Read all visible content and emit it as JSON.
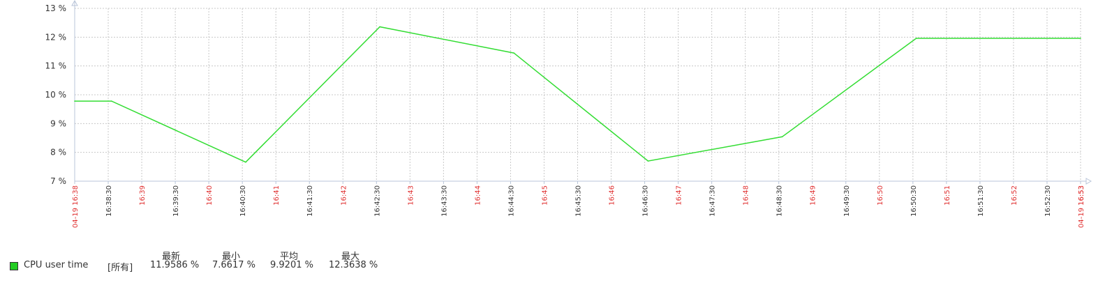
{
  "chart_data": {
    "type": "line",
    "title": "",
    "xlabel": "",
    "ylabel": "",
    "ylim": [
      7,
      13
    ],
    "yticks": [
      "13 %",
      "12 %",
      "11 %",
      "10 %",
      "9 %",
      "8 %",
      "7 %"
    ],
    "xticks": [
      {
        "label": "04-19 16:38",
        "red": true
      },
      {
        "label": "16:38:30",
        "red": false
      },
      {
        "label": "16:39",
        "red": true
      },
      {
        "label": "16:39:30",
        "red": false
      },
      {
        "label": "16:40",
        "red": true
      },
      {
        "label": "16:40:30",
        "red": false
      },
      {
        "label": "16:41",
        "red": true
      },
      {
        "label": "16:41:30",
        "red": false
      },
      {
        "label": "16:42",
        "red": true
      },
      {
        "label": "16:42:30",
        "red": false
      },
      {
        "label": "16:43",
        "red": true
      },
      {
        "label": "16:43:30",
        "red": false
      },
      {
        "label": "16:44",
        "red": true
      },
      {
        "label": "16:44:30",
        "red": false
      },
      {
        "label": "16:45",
        "red": true
      },
      {
        "label": "16:45:30",
        "red": false
      },
      {
        "label": "16:46",
        "red": true
      },
      {
        "label": "16:46:30",
        "red": false
      },
      {
        "label": "16:47",
        "red": true
      },
      {
        "label": "16:47:30",
        "red": false
      },
      {
        "label": "16:48",
        "red": true
      },
      {
        "label": "16:48:30",
        "red": false
      },
      {
        "label": "16:49",
        "red": true
      },
      {
        "label": "16:49:30",
        "red": false
      },
      {
        "label": "16:50",
        "red": true
      },
      {
        "label": "16:50:30",
        "red": false
      },
      {
        "label": "16:51",
        "red": true
      },
      {
        "label": "16:51:30",
        "red": false
      },
      {
        "label": "16:52",
        "red": true
      },
      {
        "label": "16:52:30",
        "red": false
      },
      {
        "label": "16:53",
        "red": true
      },
      {
        "label": "04-19 16:53",
        "red": true
      }
    ],
    "series": [
      {
        "name": "CPU user time",
        "color": "#33dd33",
        "points": [
          {
            "x": "16:38:00",
            "y": 9.78
          },
          {
            "x": "16:38:33",
            "y": 9.78
          },
          {
            "x": "16:40:33",
            "y": 7.66
          },
          {
            "x": "16:42:33",
            "y": 12.36
          },
          {
            "x": "16:44:33",
            "y": 11.45
          },
          {
            "x": "16:46:33",
            "y": 7.7
          },
          {
            "x": "16:48:33",
            "y": 8.54
          },
          {
            "x": "16:50:33",
            "y": 11.96
          },
          {
            "x": "16:53:00",
            "y": 11.96
          }
        ]
      }
    ],
    "grid": true
  },
  "legend": {
    "headers": {
      "last": "最新",
      "min": "最小",
      "avg": "平均",
      "max": "最大"
    },
    "items": [
      {
        "name": "CPU user time",
        "func": "[所有]",
        "last": "11.9586 %",
        "min": "7.6617 %",
        "avg": "9.9201 %",
        "max": "12.3638 %"
      }
    ]
  },
  "colors": {
    "series": "#33dd33",
    "grid": "#c8c8c8",
    "axis": "#b8c4d8",
    "tick_red": "#e03030",
    "tick_black": "#333333"
  }
}
